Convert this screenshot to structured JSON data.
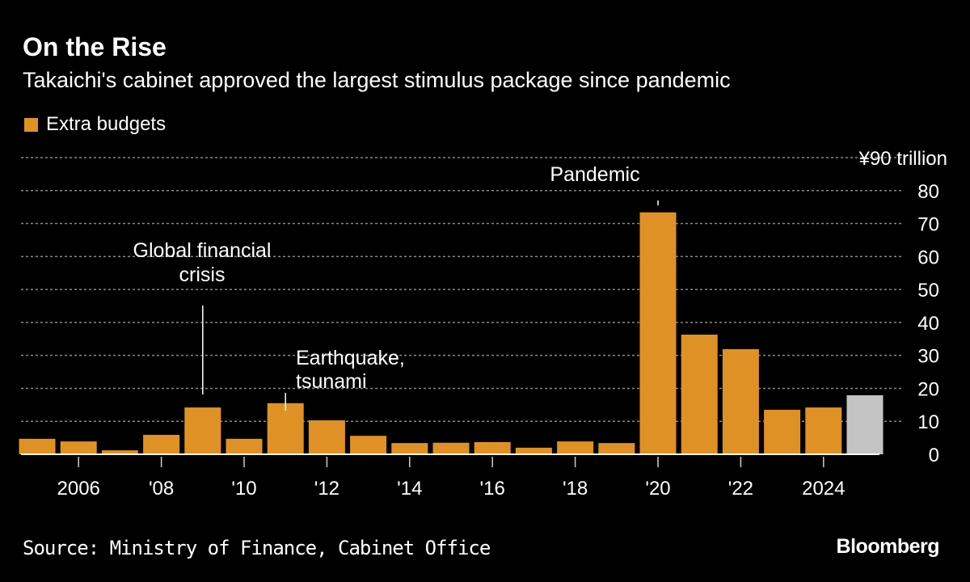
{
  "title": "On the Rise",
  "subtitle": "Takaichi's cabinet approved the largest stimulus package since pandemic",
  "source": "Source: Ministry of Finance, Cabinet Office",
  "logo": "Bloomberg",
  "chart_data": {
    "type": "bar",
    "title": "On the Rise",
    "unit_label": "¥90 trillion",
    "legend": [
      {
        "name": "Extra budgets",
        "color": "#e09126"
      }
    ],
    "legend_placement": "top-left",
    "categories": [
      "2005",
      "2006",
      "2007",
      "2008",
      "2009",
      "2010",
      "2011",
      "2012",
      "2013",
      "2014",
      "2015",
      "2016",
      "2017",
      "2018",
      "2019",
      "2020",
      "2021",
      "2022",
      "2023",
      "2024",
      "2025"
    ],
    "x_tick_labels": [
      {
        "year": "2006",
        "label": "2006"
      },
      {
        "year": "2008",
        "label": "'08"
      },
      {
        "year": "2010",
        "label": "'10"
      },
      {
        "year": "2012",
        "label": "'12"
      },
      {
        "year": "2014",
        "label": "'14"
      },
      {
        "year": "2016",
        "label": "'16"
      },
      {
        "year": "2018",
        "label": "'18"
      },
      {
        "year": "2020",
        "label": "'20"
      },
      {
        "year": "2022",
        "label": "'22"
      },
      {
        "year": "2024",
        "label": "2024"
      }
    ],
    "series": [
      {
        "name": "Extra budgets",
        "values": [
          4.7,
          3.9,
          1.2,
          5.9,
          14.2,
          4.7,
          15.5,
          10.3,
          5.6,
          3.4,
          3.5,
          3.7,
          2.0,
          3.9,
          3.4,
          73.4,
          36.3,
          31.9,
          13.5,
          14.2,
          17.9
        ]
      }
    ],
    "highlight": {
      "category": "2025",
      "color": "#c4c4c4"
    },
    "bar_color": "#e09126",
    "ylim": [
      0,
      90
    ],
    "y_ticks": [
      0,
      10,
      20,
      30,
      40,
      50,
      60,
      70,
      80
    ],
    "grid": true,
    "annotations": [
      {
        "text": [
          "Global financial",
          "crisis"
        ],
        "year": "2009"
      },
      {
        "text": [
          "Earthquake,",
          "tsunami"
        ],
        "year": "2011"
      },
      {
        "text": [
          "Pandemic"
        ],
        "year": "2020"
      }
    ]
  }
}
